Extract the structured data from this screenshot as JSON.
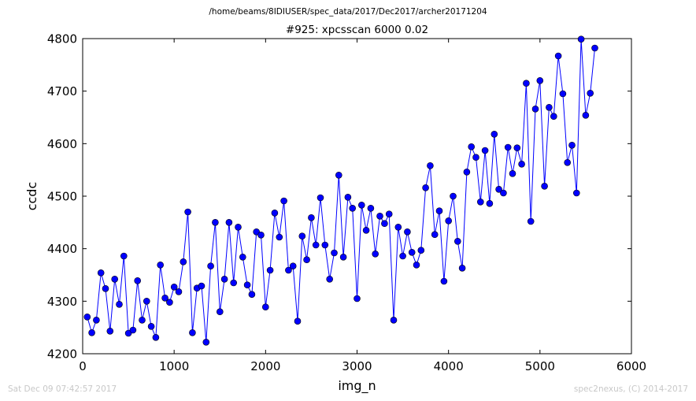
{
  "suptitle": "/home/beams/8IDIUSER/spec_data/2017/Dec2017/archer20171204",
  "footer": {
    "timestamp": "Sat Dec 09 07:42:57 2017",
    "credit": "spec2nexus, (C) 2014-2017"
  },
  "chart_data": {
    "type": "line",
    "title": "#925: xpcsscan 6000 0.02",
    "xlabel": "img_n",
    "ylabel": "ccdc",
    "xlim": [
      0,
      6000
    ],
    "ylim": [
      4200,
      4800
    ],
    "xticks": [
      0,
      1000,
      2000,
      3000,
      4000,
      5000,
      6000
    ],
    "yticks": [
      4200,
      4300,
      4400,
      4500,
      4600,
      4700,
      4800
    ],
    "grid": false,
    "legend": "none",
    "series_color": "#0000ff",
    "marker": "circle",
    "x_start": 50,
    "x_step": 50,
    "values": [
      4270,
      4240,
      4264,
      4354,
      4324,
      4243,
      4342,
      4294,
      4386,
      4239,
      4245,
      4339,
      4264,
      4300,
      4252,
      4231,
      4369,
      4306,
      4298,
      4327,
      4318,
      4375,
      4470,
      4240,
      4325,
      4329,
      4222,
      4367,
      4450,
      4280,
      4342,
      4450,
      4335,
      4441,
      4384,
      4331,
      4313,
      4432,
      4426,
      4289,
      4359,
      4468,
      4422,
      4491,
      4359,
      4367,
      4262,
      4424,
      4379,
      4459,
      4407,
      4497,
      4407,
      4342,
      4392,
      4540,
      4384,
      4498,
      4477,
      4305,
      4483,
      4435,
      4477,
      4390,
      4462,
      4448,
      4466,
      4264,
      4441,
      4386,
      4432,
      4393,
      4369,
      4397,
      4516,
      4558,
      4427,
      4472,
      4338,
      4453,
      4500,
      4414,
      4363,
      4546,
      4594,
      4574,
      4489,
      4587,
      4486,
      4618,
      4513,
      4506,
      4593,
      4543,
      4592,
      4561,
      4715,
      4452,
      4666,
      4720,
      4519,
      4669,
      4652,
      4767,
      4695,
      4564,
      4597,
      4506,
      4799,
      4654,
      4696,
      4782
    ]
  }
}
